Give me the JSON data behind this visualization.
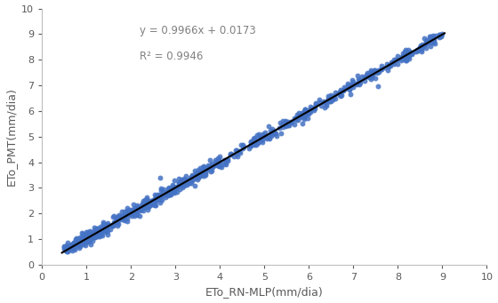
{
  "slope": 0.9966,
  "intercept": 0.0173,
  "r_squared": 0.9946,
  "x_min": 0.45,
  "x_max": 9.05,
  "y_min": 0.55,
  "y_max": 9.0,
  "xlabel": "ETo_RN-MLP(mm/dia)",
  "ylabel": "ETo_PMT(mm/dia)",
  "equation_text": "y = 0.9966x + 0.0173",
  "r2_text": "R² = 0.9946",
  "scatter_color": "#4472C4",
  "line_color": "#000000",
  "xlim": [
    0,
    10
  ],
  "ylim": [
    0,
    10
  ],
  "xticks": [
    0,
    1,
    2,
    3,
    4,
    5,
    6,
    7,
    8,
    9,
    10
  ],
  "yticks": [
    0,
    1,
    2,
    3,
    4,
    5,
    6,
    7,
    8,
    9,
    10
  ],
  "annotation_color": "#808080",
  "spine_color": "#bfbfbf",
  "tick_color": "#595959",
  "seed": 42,
  "n_points": 500,
  "noise_std": 0.12
}
